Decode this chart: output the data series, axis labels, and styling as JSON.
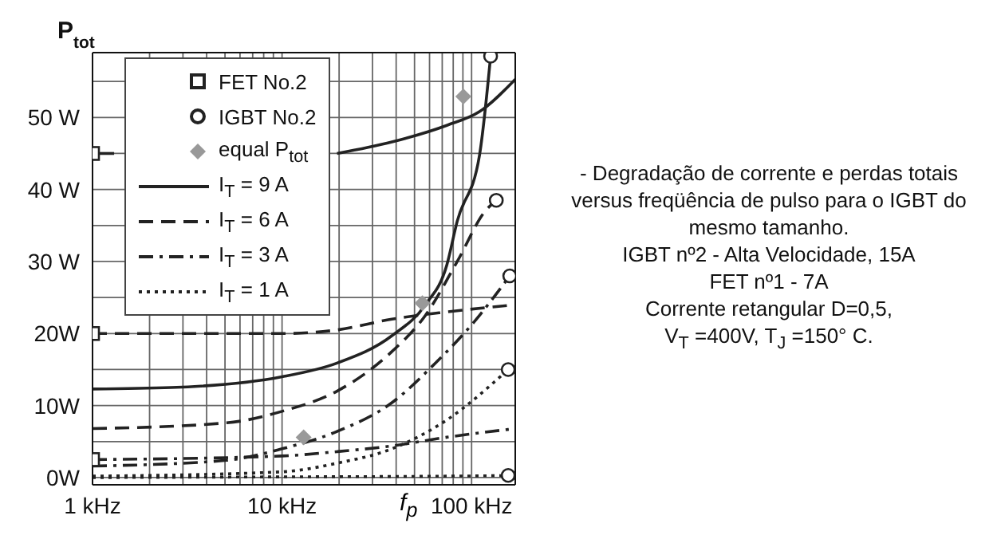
{
  "chart_data": {
    "type": "line",
    "ylabel": "P$_{tot}$",
    "xlabel": "f$_{p}$",
    "log": "x",
    "grid": true,
    "legend": "top left",
    "xlim": [
      1,
      170
    ],
    "ylim": [
      -1,
      59
    ],
    "xticks": [
      {
        "value": 1,
        "label": "1 kHz"
      },
      {
        "value": 2,
        "label": null
      },
      {
        "value": 3,
        "label": null
      },
      {
        "value": 4,
        "label": null
      },
      {
        "value": 5,
        "label": null
      },
      {
        "value": 6,
        "label": null
      },
      {
        "value": 7,
        "label": null
      },
      {
        "value": 8,
        "label": null
      },
      {
        "value": 9,
        "label": null
      },
      {
        "value": 10,
        "label": "10 kHz"
      },
      {
        "value": 20,
        "label": null
      },
      {
        "value": 30,
        "label": null
      },
      {
        "value": 40,
        "label": null
      },
      {
        "value": 50,
        "label": null
      },
      {
        "value": 60,
        "label": null
      },
      {
        "value": 70,
        "label": null
      },
      {
        "value": 80,
        "label": null
      },
      {
        "value": 90,
        "label": null
      },
      {
        "value": 100,
        "label": "100 kHz"
      }
    ],
    "yticks": [
      {
        "value": 0,
        "label": "0W"
      },
      {
        "value": 5,
        "label": null
      },
      {
        "value": 10,
        "label": "10W"
      },
      {
        "value": 15,
        "label": null
      },
      {
        "value": 20,
        "label": "20W"
      },
      {
        "value": 25,
        "label": null
      },
      {
        "value": 30,
        "label": "30 W"
      },
      {
        "value": 35,
        "label": null
      },
      {
        "value": 40,
        "label": "40 W"
      },
      {
        "value": 45,
        "label": null
      },
      {
        "value": 50,
        "label": "50 W"
      },
      {
        "value": 55,
        "label": null
      }
    ],
    "series": [
      {
        "name": "FET No.2",
        "type": "scatter",
        "marker": "square",
        "color": "#222222",
        "x": [
          1,
          1,
          1
        ],
        "values": [
          45,
          20,
          2.5
        ]
      },
      {
        "name": "IGBT No.2",
        "type": "scatter",
        "marker": "circle",
        "color": "#222222",
        "x": [
          126,
          135,
          159,
          156,
          156
        ],
        "values": [
          58.5,
          38.5,
          28,
          15,
          0.3
        ]
      },
      {
        "name": "equal P$_{tot}$",
        "type": "scatter",
        "marker": "diamond",
        "color": "#999999",
        "x": [
          90.5,
          55,
          13
        ],
        "values": [
          52.9,
          24.2,
          5.6
        ]
      },
      {
        "name": "I$_{T}$ = 9 A",
        "line_style": "solid",
        "color": "#222222",
        "x": [
          1,
          1.3
        ],
        "values": [
          45,
          45
        ]
      },
      {
        "line_style": "solid",
        "color": "#222222",
        "x": [
          19.5,
          38,
          74,
          110,
          170
        ],
        "values": [
          45,
          46.6,
          48.9,
          50.8,
          55.3
        ]
      },
      {
        "line_style": "solid",
        "color": "#222222",
        "x": [
          1,
          2.6,
          10,
          19.5,
          38,
          57,
          74,
          84,
          110,
          126
        ],
        "values": [
          12.3,
          12.5,
          14,
          15.9,
          19.7,
          24,
          29.5,
          35.6,
          44.7,
          58.5
        ]
      },
      {
        "name": "I$_{T}$ = 6 A",
        "line_style": "dashed",
        "color": "#222222",
        "x": [
          1,
          10,
          19.5,
          38,
          74,
          170
        ],
        "values": [
          20,
          20,
          20.5,
          22,
          23,
          24
        ]
      },
      {
        "line_style": "dashed",
        "color": "#222222",
        "x": [
          1,
          5.1,
          10,
          19.5,
          38,
          57,
          84,
          118,
          135
        ],
        "values": [
          6.8,
          7.6,
          9.2,
          12,
          17.5,
          22.5,
          30,
          37,
          38.5
        ]
      },
      {
        "name": "I$_{T}$ = 3 A",
        "line_style": "dashdot",
        "color": "#222222",
        "x": [
          1,
          10,
          19.5,
          38,
          74,
          170
        ],
        "values": [
          2.5,
          3,
          3.6,
          4.4,
          5.6,
          6.8
        ]
      },
      {
        "line_style": "dashdot",
        "color": "#222222",
        "x": [
          1,
          5.1,
          10,
          19.5,
          38,
          65,
          103,
          159
        ],
        "values": [
          1.6,
          2.4,
          4,
          6.4,
          10.4,
          16,
          21.6,
          28
        ]
      },
      {
        "name": "I$_{T}$ = 1 A",
        "line_style": "dotted",
        "color": "#222222",
        "x": [
          1,
          10,
          74,
          156,
          170
        ],
        "values": [
          0,
          0.1,
          0.2,
          0.3,
          0.4
        ]
      },
      {
        "line_style": "dotted",
        "color": "#222222",
        "x": [
          1,
          10,
          19.5,
          38,
          74,
          156
        ],
        "values": [
          0.2,
          0.8,
          2,
          4,
          8,
          15
        ]
      }
    ],
    "annotations": [
      "- Degradação de corrente e perdas totais versus freqüência de pulso para o IGBT do mesmo tamanho.",
      "IGBT nº2 - Alta Velocidade, 15A",
      "FET nº1 - 7A",
      "Corrente retangular  D=0,5,",
      "V$_{T}$ =400V, T$_{J}$ =150° C."
    ]
  }
}
